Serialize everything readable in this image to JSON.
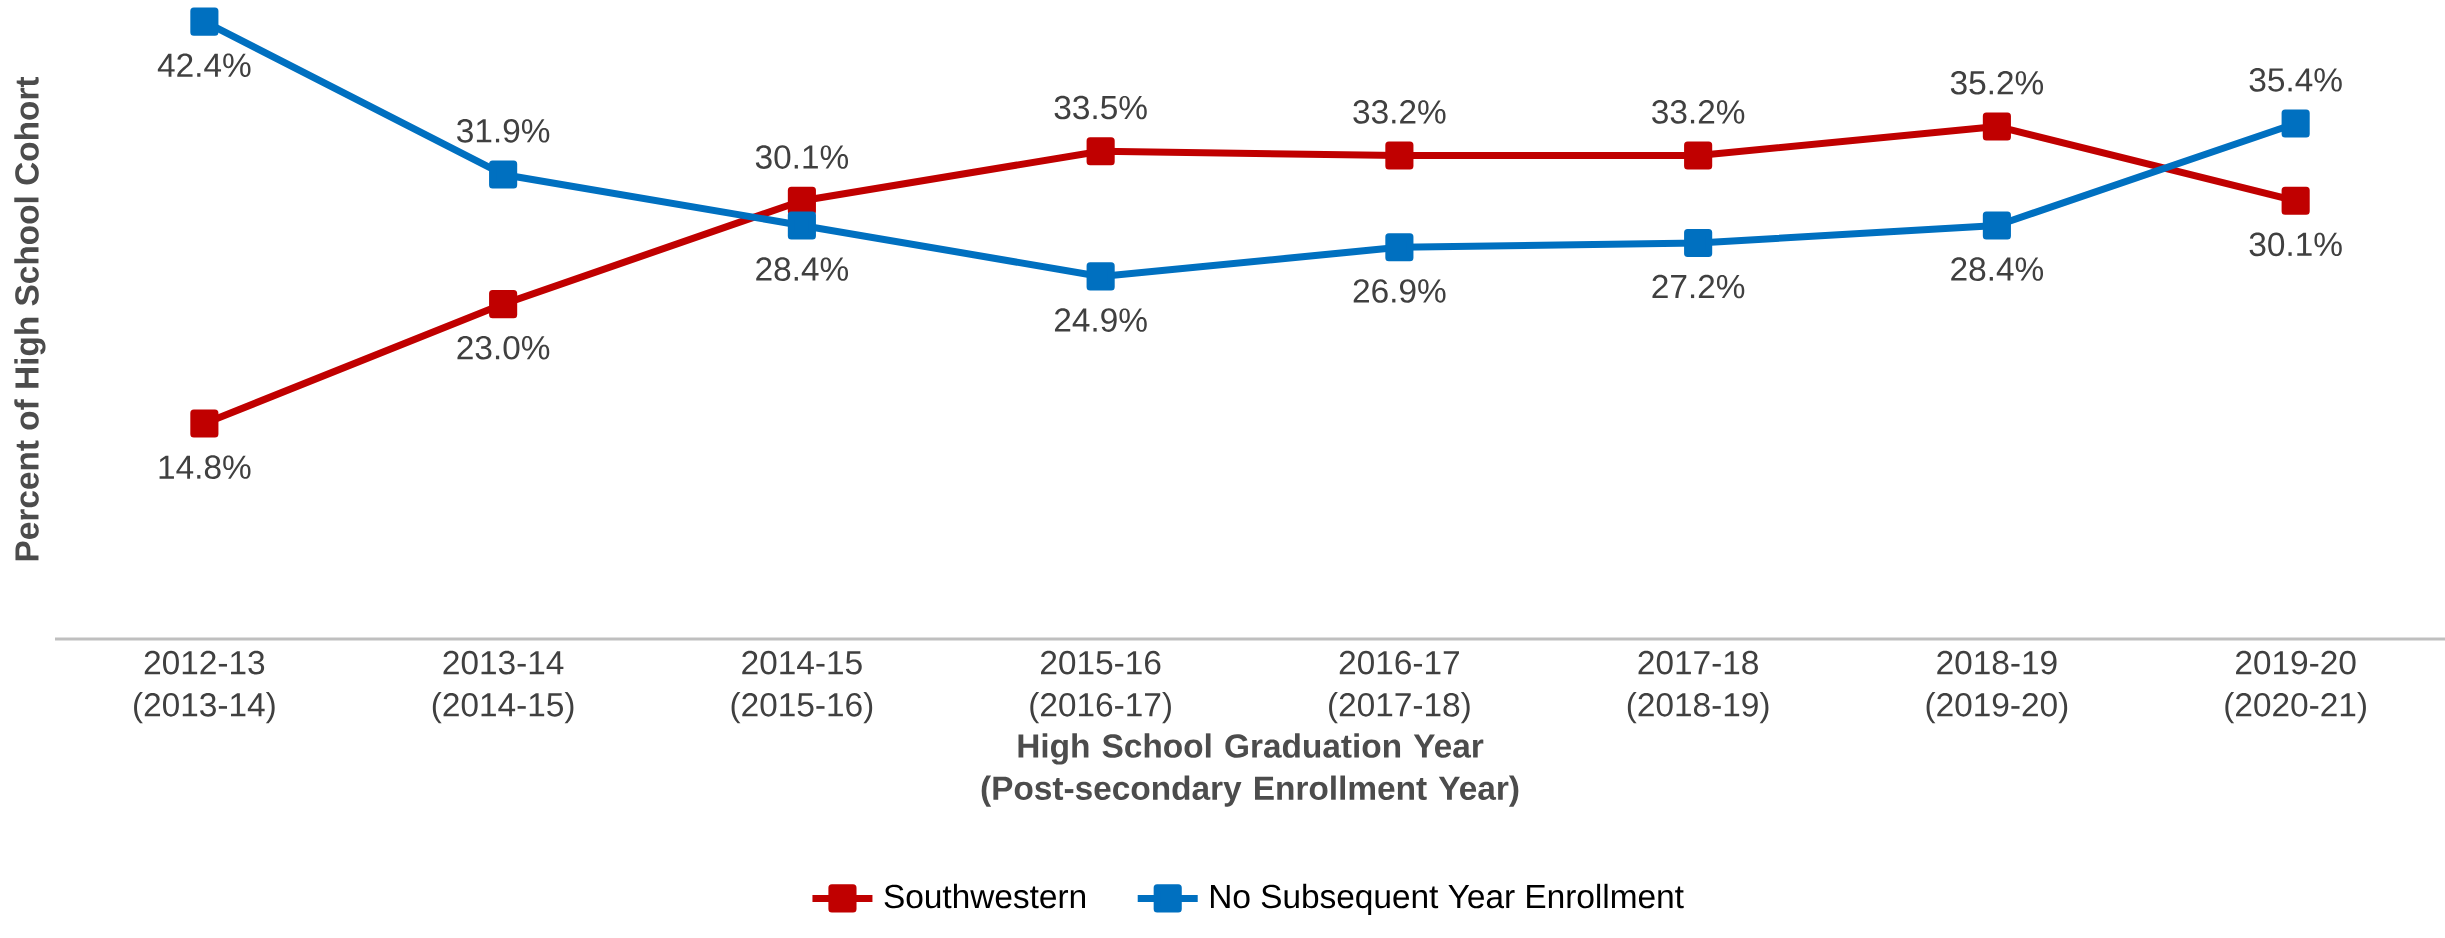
{
  "chart_data": {
    "type": "line",
    "xlabel": "High School Graduation Year (Post-secondary Enrollment Year)",
    "ylabel": "Percent of High School Cohort",
    "categories": [
      "2012-13 (2013-14)",
      "2013-14 (2014-15)",
      "2014-15 (2015-16)",
      "2015-16 (2016-17)",
      "2016-17 (2017-18)",
      "2017-18 (2018-19)",
      "2018-19 (2019-20)",
      "2019-20 (2020-21)"
    ],
    "series": [
      {
        "name": "Southwestern",
        "color": "#c00000",
        "values": [
          14.8,
          23.0,
          30.1,
          33.5,
          33.2,
          33.2,
          35.2,
          30.1
        ],
        "value_labels": [
          "14.8%",
          "23.0%",
          "30.1%",
          "33.5%",
          "33.2%",
          "33.2%",
          "35.2%",
          "30.1%"
        ]
      },
      {
        "name": "No Subsequent Year Enrollment",
        "color": "#0070c0",
        "values": [
          42.4,
          31.9,
          28.4,
          24.9,
          26.9,
          27.2,
          28.4,
          35.4
        ],
        "value_labels": [
          "42.4%",
          "31.9%",
          "28.4%",
          "24.9%",
          "26.9%",
          "27.2%",
          "28.4%",
          "35.4%"
        ]
      }
    ],
    "marker": "square",
    "line_style": "solid",
    "grid": false,
    "legend": "bottom"
  }
}
